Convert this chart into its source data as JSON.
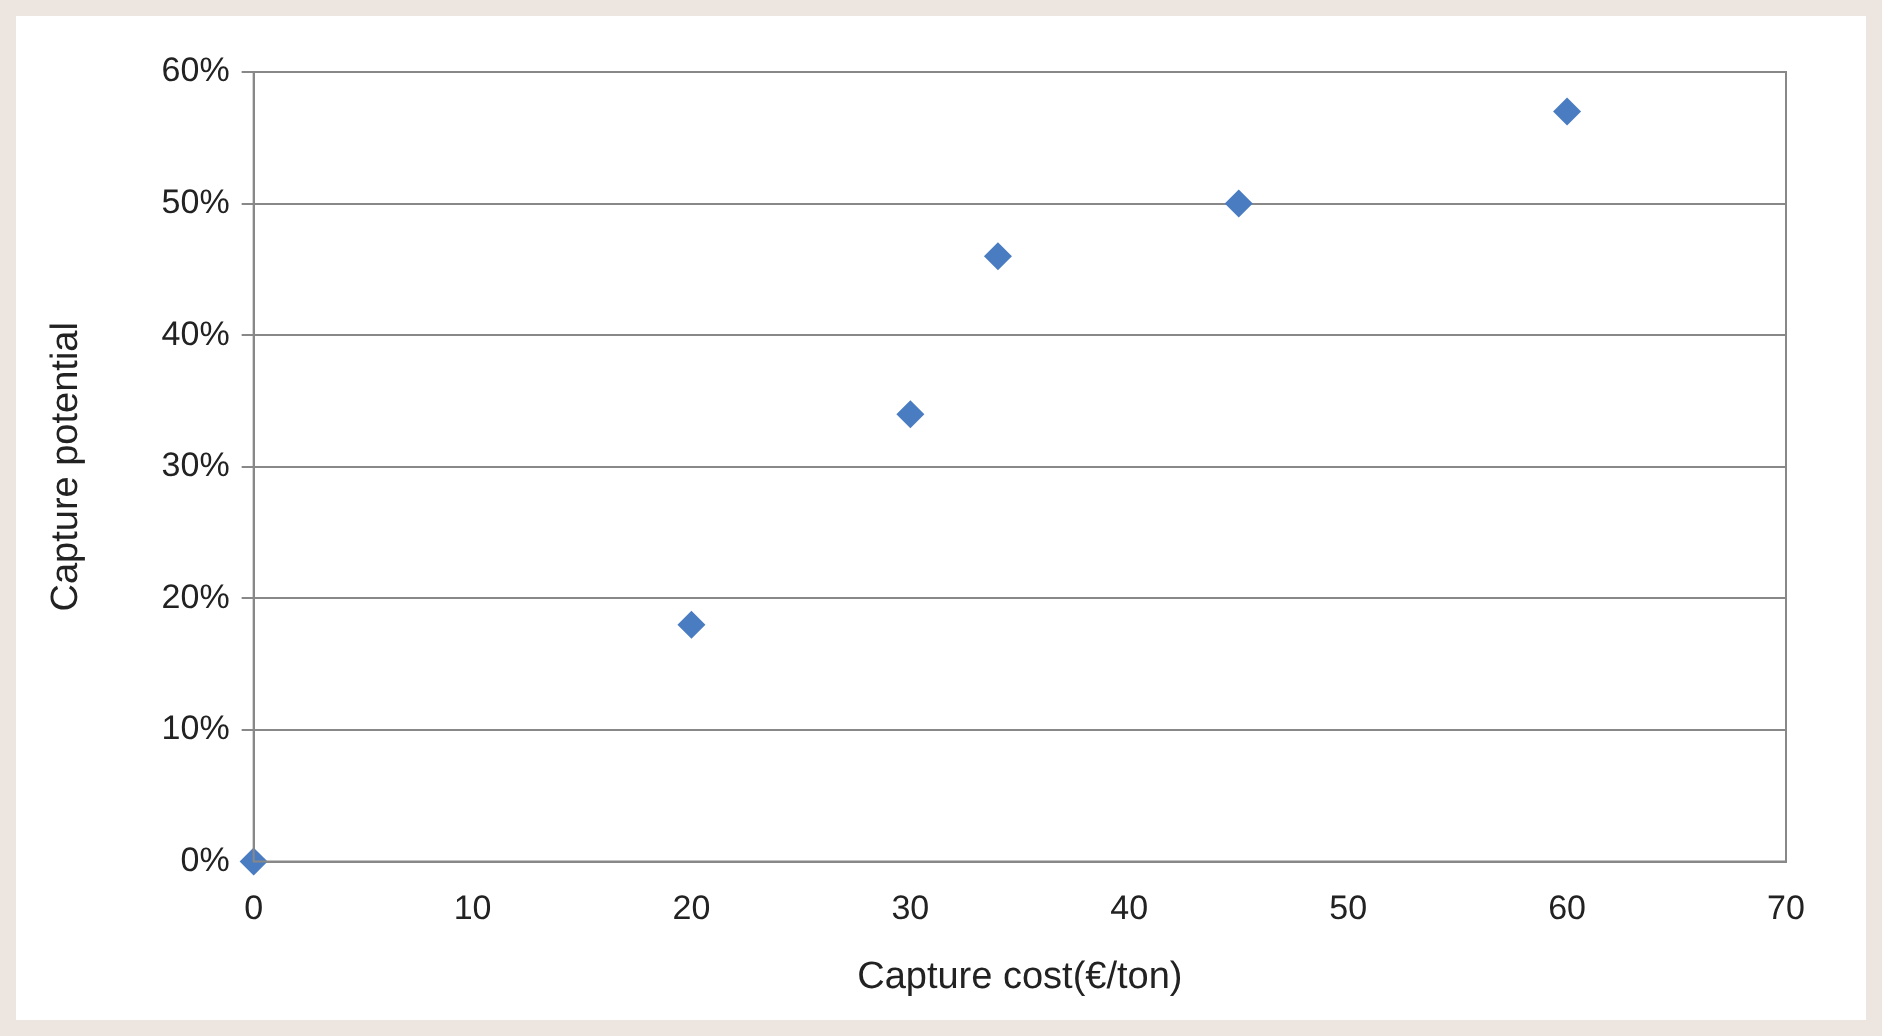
{
  "chart_data": {
    "type": "scatter",
    "xlabel": "Capture cost(€/ton)",
    "ylabel": "Capture potential",
    "x": [
      0,
      20,
      30,
      34,
      45,
      60
    ],
    "series": [
      {
        "color": "#4a7cc1",
        "values": [
          0,
          18,
          34,
          46,
          50,
          57
        ]
      }
    ],
    "xlim": [
      0,
      70
    ],
    "xticks": [
      0,
      10,
      20,
      30,
      40,
      50,
      60,
      70
    ],
    "ylim": [
      0,
      60
    ],
    "yticks": [
      {
        "value": 0,
        "label": "0%"
      },
      {
        "value": 10,
        "label": "10%"
      },
      {
        "value": 20,
        "label": "20%"
      },
      {
        "value": 30,
        "label": "30%"
      },
      {
        "value": 40,
        "label": "40%"
      },
      {
        "value": 50,
        "label": "50%"
      },
      {
        "value": 60,
        "label": "60%"
      }
    ],
    "grid": "y",
    "legend": false,
    "marker": "diamond"
  }
}
